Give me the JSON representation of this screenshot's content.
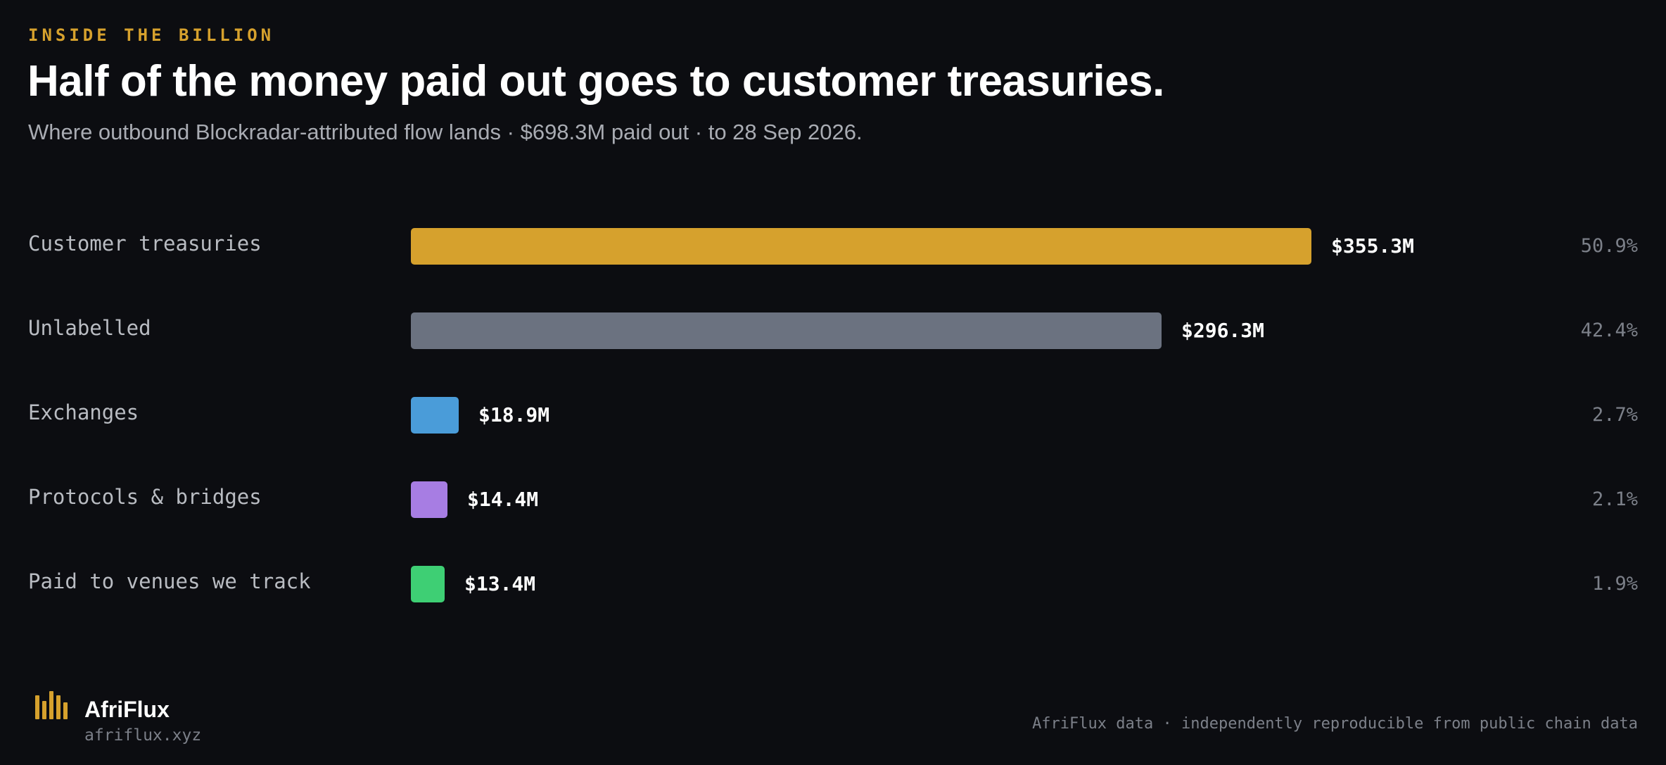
{
  "header": {
    "eyebrow": "INSIDE THE BILLION",
    "title": "Half of the money paid out goes to customer treasuries.",
    "subtitle": "Where outbound Blockradar-attributed flow lands · $698.3M paid out · to 28 Sep 2026."
  },
  "chart_data": {
    "type": "bar",
    "orientation": "horizontal",
    "unit": "USD millions",
    "categories": [
      "Customer treasuries",
      "Unlabelled",
      "Exchanges",
      "Protocols & bridges",
      "Paid to venues we track"
    ],
    "values": [
      355.3,
      296.3,
      18.9,
      14.4,
      13.4
    ],
    "value_labels": [
      "$355.3M",
      "$296.3M",
      "$18.9M",
      "$14.4M",
      "$13.4M"
    ],
    "percent_labels": [
      "50.9%",
      "42.4%",
      "2.7%",
      "2.1%",
      "1.9%"
    ],
    "colors": [
      "#d6a12d",
      "#6b7280",
      "#4a9cd9",
      "#a77de3",
      "#3ecf74"
    ],
    "xlim": [
      0,
      355.3
    ],
    "grid": false,
    "legend": "none"
  },
  "footer": {
    "brand_name": "AfriFlux",
    "brand_url": "afriflux.xyz",
    "note": "AfriFlux data · independently reproducible from public chain data"
  },
  "icons": {
    "brand": "bar-chart-logo-icon"
  },
  "colors": {
    "background": "#0c0d11",
    "accent": "#d6a12d"
  }
}
